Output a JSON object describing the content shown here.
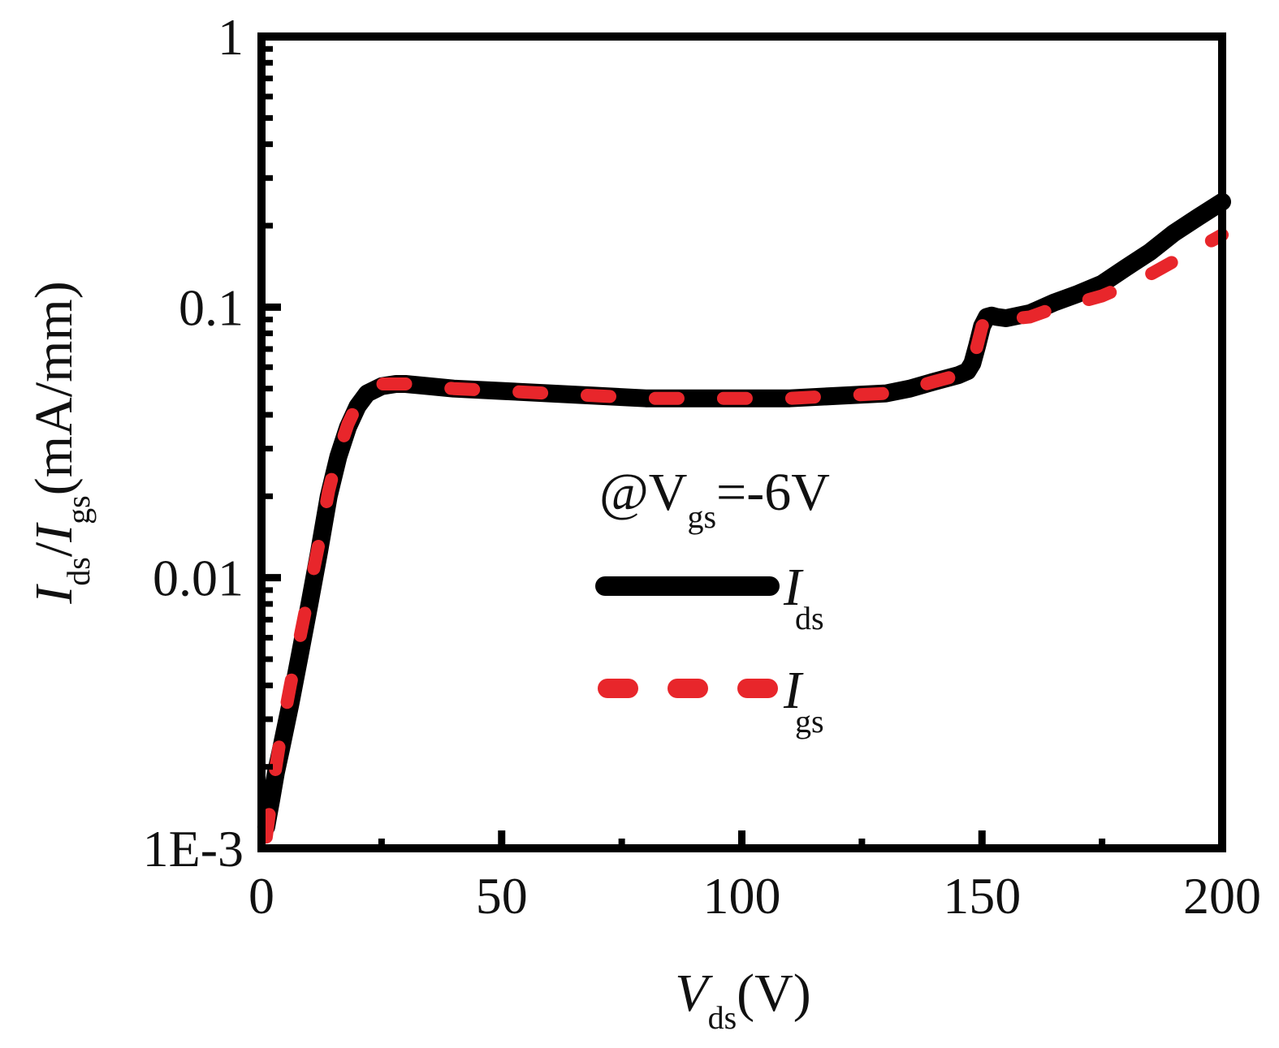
{
  "chart_data": {
    "type": "line",
    "xlabel": {
      "main": "V",
      "sub": "ds",
      "unit": "(V)"
    },
    "ylabel": {
      "main1": "I",
      "sub1": "ds",
      "sep": "/",
      "main2": "I",
      "sub2": "gs",
      "unit": "(mA/mm)"
    },
    "xlim": [
      0,
      200
    ],
    "ylim": [
      0.001,
      1
    ],
    "yscale": "log",
    "grid": false,
    "x_ticks": [
      0,
      50,
      100,
      150,
      200
    ],
    "x_tick_labels": [
      "0",
      "50",
      "100",
      "150",
      "200"
    ],
    "y_ticks": [
      0.001,
      0.01,
      0.1,
      1
    ],
    "y_tick_labels": [
      "1E-3",
      "0.01",
      "0.1",
      "1"
    ],
    "annotation": {
      "prefix": "@V",
      "sub": "gs",
      "suffix": "=-6V"
    },
    "legend_position": "center-right",
    "series": [
      {
        "name": "I",
        "name_sub": "ds",
        "color": "#000000",
        "style": "solid",
        "x": [
          1,
          2,
          3,
          4,
          6,
          8,
          10,
          12,
          14,
          16,
          18,
          20,
          22,
          25,
          28,
          30,
          35,
          40,
          50,
          60,
          70,
          80,
          90,
          100,
          110,
          120,
          130,
          135,
          140,
          145,
          147,
          148,
          149,
          150,
          151,
          152,
          153,
          155,
          160,
          165,
          170,
          175,
          180,
          185,
          190,
          195,
          200
        ],
        "y": [
          0.0012,
          0.0015,
          0.0019,
          0.0023,
          0.0034,
          0.0052,
          0.008,
          0.0125,
          0.02,
          0.028,
          0.036,
          0.043,
          0.048,
          0.051,
          0.052,
          0.052,
          0.051,
          0.05,
          0.049,
          0.048,
          0.047,
          0.046,
          0.046,
          0.046,
          0.046,
          0.047,
          0.048,
          0.05,
          0.053,
          0.056,
          0.058,
          0.062,
          0.072,
          0.085,
          0.092,
          0.093,
          0.092,
          0.091,
          0.095,
          0.104,
          0.112,
          0.122,
          0.14,
          0.16,
          0.188,
          0.215,
          0.245
        ]
      },
      {
        "name": "I",
        "name_sub": "gs",
        "color": "#e8262b",
        "style": "dashed",
        "x": [
          1,
          2,
          3,
          4,
          6,
          8,
          10,
          12,
          14,
          16,
          18,
          20,
          22,
          25,
          28,
          30,
          35,
          40,
          50,
          60,
          70,
          80,
          90,
          100,
          110,
          120,
          130,
          135,
          140,
          145,
          147,
          148,
          149,
          150,
          151,
          152,
          153,
          155,
          160,
          165,
          170,
          175,
          180,
          185,
          190,
          195,
          200
        ],
        "y": [
          0.0011,
          0.0015,
          0.002,
          0.0026,
          0.004,
          0.006,
          0.009,
          0.0135,
          0.021,
          0.029,
          0.037,
          0.044,
          0.049,
          0.052,
          0.052,
          0.052,
          0.051,
          0.05,
          0.049,
          0.048,
          0.047,
          0.046,
          0.046,
          0.046,
          0.046,
          0.047,
          0.048,
          0.05,
          0.053,
          0.056,
          0.058,
          0.062,
          0.072,
          0.085,
          0.091,
          0.092,
          0.091,
          0.09,
          0.092,
          0.099,
          0.104,
          0.11,
          0.12,
          0.132,
          0.148,
          0.165,
          0.185
        ]
      }
    ]
  }
}
